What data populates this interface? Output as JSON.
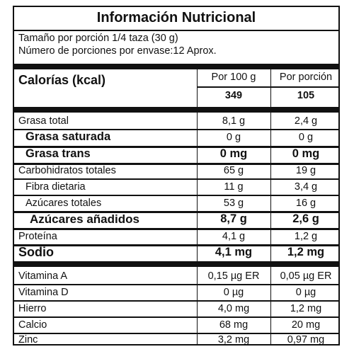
{
  "title": "Información Nutricional",
  "serving": {
    "size": "Tamaño por porción 1/4 taza (30 g)",
    "per_container": "Número de porciones por envase:12 Aprox."
  },
  "calories": {
    "label": "Calorías (kcal)",
    "col1_header": "Por 100 g",
    "col2_header": "Por porción",
    "col1_value": "349",
    "col2_value": "105"
  },
  "nutrients": [
    {
      "label": "Grasa total",
      "per100": "8,1 g",
      "perServing": "2,4 g"
    },
    {
      "label": "Grasa saturada",
      "per100": "0 g",
      "perServing": "0 g"
    },
    {
      "label": "Grasa trans",
      "per100": "0 mg",
      "perServing": "0 mg"
    },
    {
      "label": "Carbohidratos totales",
      "per100": "65 g",
      "perServing": "19 g"
    },
    {
      "label": "Fibra dietaria",
      "per100": "11 g",
      "perServing": "3,4 g"
    },
    {
      "label": "Azúcares totales",
      "per100": "53 g",
      "perServing": "16 g"
    },
    {
      "label": "Azúcares añadidos",
      "per100": "8,7 g",
      "perServing": "2,6 g"
    },
    {
      "label": "Proteína",
      "per100": "4,1 g",
      "perServing": "1,2 g"
    },
    {
      "label": "Sodio",
      "per100": "4,1 mg",
      "perServing": "1,2 mg"
    }
  ],
  "micronutrients": [
    {
      "label": "Vitamina A",
      "per100": "0,15 µg ER",
      "perServing": "0,05 µg ER"
    },
    {
      "label": "Vitamina D",
      "per100": "0 µg",
      "perServing": "0 µg"
    },
    {
      "label": "Hierro",
      "per100": "4,0 mg",
      "perServing": "1,2 mg"
    },
    {
      "label": "Calcio",
      "per100": "68 mg",
      "perServing": "20 mg"
    },
    {
      "label": "Zinc",
      "per100": "3,2 mg",
      "perServing": "0,97 mg"
    }
  ]
}
